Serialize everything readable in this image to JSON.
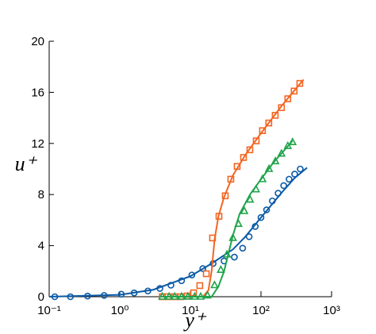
{
  "chart_data": {
    "type": "line",
    "xlabel": "y⁺",
    "ylabel": "u⁺",
    "xscale": "log",
    "xlim": [
      0.1,
      1000
    ],
    "ylim": [
      0,
      20
    ],
    "xticks": [
      {
        "value": 0.1,
        "label": "10⁻¹"
      },
      {
        "value": 1,
        "label": "10⁰"
      },
      {
        "value": 10,
        "label": "10¹"
      },
      {
        "value": 100,
        "label": "10²"
      },
      {
        "value": 1000,
        "label": "10³"
      }
    ],
    "yticks": [
      0,
      4,
      8,
      12,
      16,
      20
    ],
    "series": [
      {
        "color": "#0b5aa6",
        "style": "line",
        "x": [
          0.1,
          1,
          3,
          10,
          20,
          40,
          60,
          100,
          200,
          300,
          450
        ],
        "values": [
          0,
          0.15,
          0.55,
          1.6,
          2.6,
          3.7,
          4.7,
          6.2,
          8.2,
          9.3,
          10.1
        ]
      },
      {
        "color": "#0b5aa6",
        "style": "marker",
        "marker": "circle",
        "x": [
          0.12,
          0.2,
          0.35,
          0.6,
          1.05,
          1.6,
          2.5,
          3.7,
          5.3,
          7.5,
          10.5,
          15,
          21,
          30,
          42,
          55,
          68,
          83,
          100,
          120,
          145,
          175,
          210,
          250,
          300,
          360
        ],
        "values": [
          0,
          0,
          0.05,
          0.1,
          0.2,
          0.3,
          0.45,
          0.65,
          0.9,
          1.25,
          1.7,
          2.2,
          2.6,
          2.8,
          3.1,
          3.8,
          4.7,
          5.5,
          6.2,
          6.8,
          7.5,
          8.1,
          8.7,
          9.2,
          9.6,
          10
        ]
      },
      {
        "color": "#f26522",
        "style": "line",
        "x": [
          4,
          15,
          18,
          20,
          22,
          25,
          30,
          40,
          60,
          100,
          200,
          400
        ],
        "values": [
          0,
          0,
          0.5,
          2,
          4.5,
          6.3,
          7.8,
          9.5,
          11.1,
          12.8,
          15,
          17
        ]
      },
      {
        "color": "#f26522",
        "style": "marker",
        "marker": "square",
        "x": [
          4,
          4.8,
          6,
          7.3,
          9,
          11.1,
          13.6,
          16.8,
          20.6,
          25.4,
          31.2,
          37.4,
          46,
          56.6,
          69.6,
          85.6,
          105,
          129,
          159,
          195,
          240,
          295,
          355
        ],
        "values": [
          0,
          0,
          0,
          0,
          0.06,
          0.3,
          0.87,
          1.8,
          4.6,
          6.3,
          7.9,
          9.2,
          10.2,
          10.9,
          11.5,
          12.2,
          13,
          13.6,
          14.2,
          14.8,
          15.5,
          16.1,
          16.7
        ]
      },
      {
        "color": "#1fa34a",
        "style": "line",
        "x": [
          4,
          20,
          25,
          30,
          40,
          50,
          70,
          100,
          150,
          280
        ],
        "values": [
          0,
          0,
          0.8,
          2,
          4.8,
          6.5,
          8,
          9.2,
          10.5,
          12.2
        ]
      },
      {
        "color": "#1fa34a",
        "style": "marker",
        "marker": "triangle",
        "x": [
          4,
          5,
          6,
          7.5,
          9.2,
          11.5,
          14,
          17.5,
          22,
          27,
          33,
          40,
          48,
          58,
          70,
          85,
          105,
          130,
          160,
          195,
          240,
          280
        ],
        "values": [
          0,
          0,
          0,
          0,
          0,
          0,
          0,
          0.1,
          0.9,
          2.1,
          3.3,
          4.6,
          5.7,
          6.7,
          7.6,
          8.4,
          9.2,
          10,
          10.6,
          11.2,
          11.8,
          12.1
        ]
      }
    ]
  }
}
